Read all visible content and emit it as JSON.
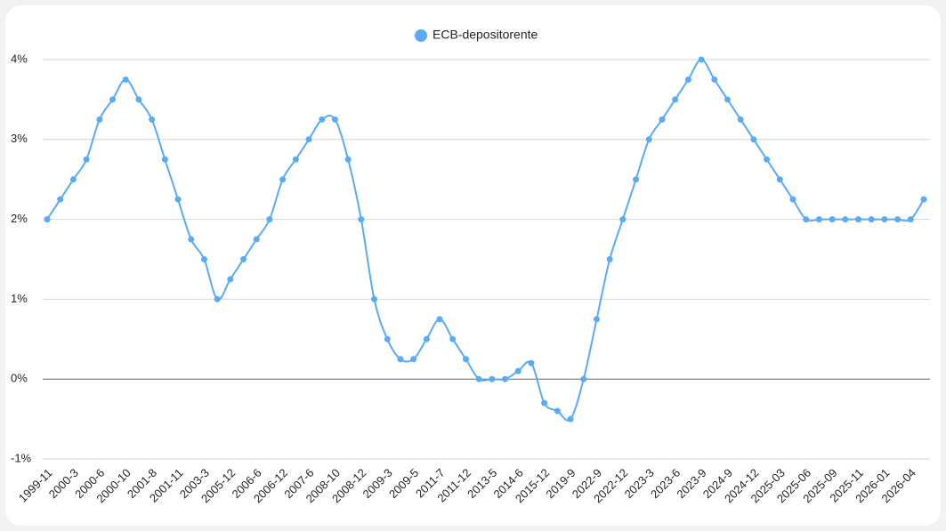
{
  "chart_data": {
    "type": "line",
    "categories": [
      "1999-11",
      null,
      "2000-3",
      null,
      "2000-6",
      null,
      "2000-10",
      null,
      "2001-8",
      null,
      "2001-11",
      null,
      "2003-3",
      null,
      "2005-12",
      null,
      "2006-6",
      null,
      "2006-12",
      null,
      "2007-6",
      null,
      "2008-10",
      null,
      "2008-12",
      null,
      "2009-3",
      null,
      "2009-5",
      null,
      "2011-7",
      null,
      "2011-12",
      null,
      "2013-5",
      null,
      "2014-6",
      null,
      "2015-12",
      null,
      "2019-9",
      null,
      "2022-9",
      null,
      "2022-12",
      null,
      "2023-3",
      null,
      "2023-6",
      null,
      "2023-9",
      null,
      "2024-9",
      null,
      "2024-12",
      null,
      "2025-03",
      null,
      "2025-06",
      null,
      "2025-09",
      null,
      "2025-11",
      null,
      "2026-01",
      null,
      "2026-04",
      null
    ],
    "series": [
      {
        "name": "ECB-depositorente",
        "color": "#5aabf5",
        "values": [
          2.0,
          2.25,
          2.5,
          2.75,
          3.25,
          3.5,
          3.75,
          3.5,
          3.25,
          2.75,
          2.25,
          1.75,
          1.5,
          1.0,
          1.25,
          1.5,
          1.75,
          2.0,
          2.5,
          2.75,
          3.0,
          3.25,
          3.25,
          2.75,
          2.0,
          1.0,
          0.5,
          0.25,
          0.25,
          0.5,
          0.75,
          0.5,
          0.25,
          0,
          0,
          0,
          0.1,
          0.2,
          -0.3,
          -0.4,
          -0.5,
          0,
          0.75,
          1.5,
          2.0,
          2.5,
          3.0,
          3.25,
          3.5,
          3.75,
          4.0,
          3.75,
          3.5,
          3.25,
          3.0,
          2.75,
          2.5,
          2.25,
          2.0,
          2.0,
          2.0,
          2.0,
          2.0,
          2.0,
          2.0,
          2.0,
          2.0,
          2.25
        ]
      }
    ],
    "ylim": [
      -1,
      4
    ],
    "yticks": [
      {
        "value": -1,
        "label": "-1%"
      },
      {
        "value": 0,
        "label": "0%"
      },
      {
        "value": 1,
        "label": "1%"
      },
      {
        "value": 2,
        "label": "2%"
      },
      {
        "value": 3,
        "label": "3%"
      },
      {
        "value": 4,
        "label": "4%"
      }
    ],
    "grid": true
  }
}
